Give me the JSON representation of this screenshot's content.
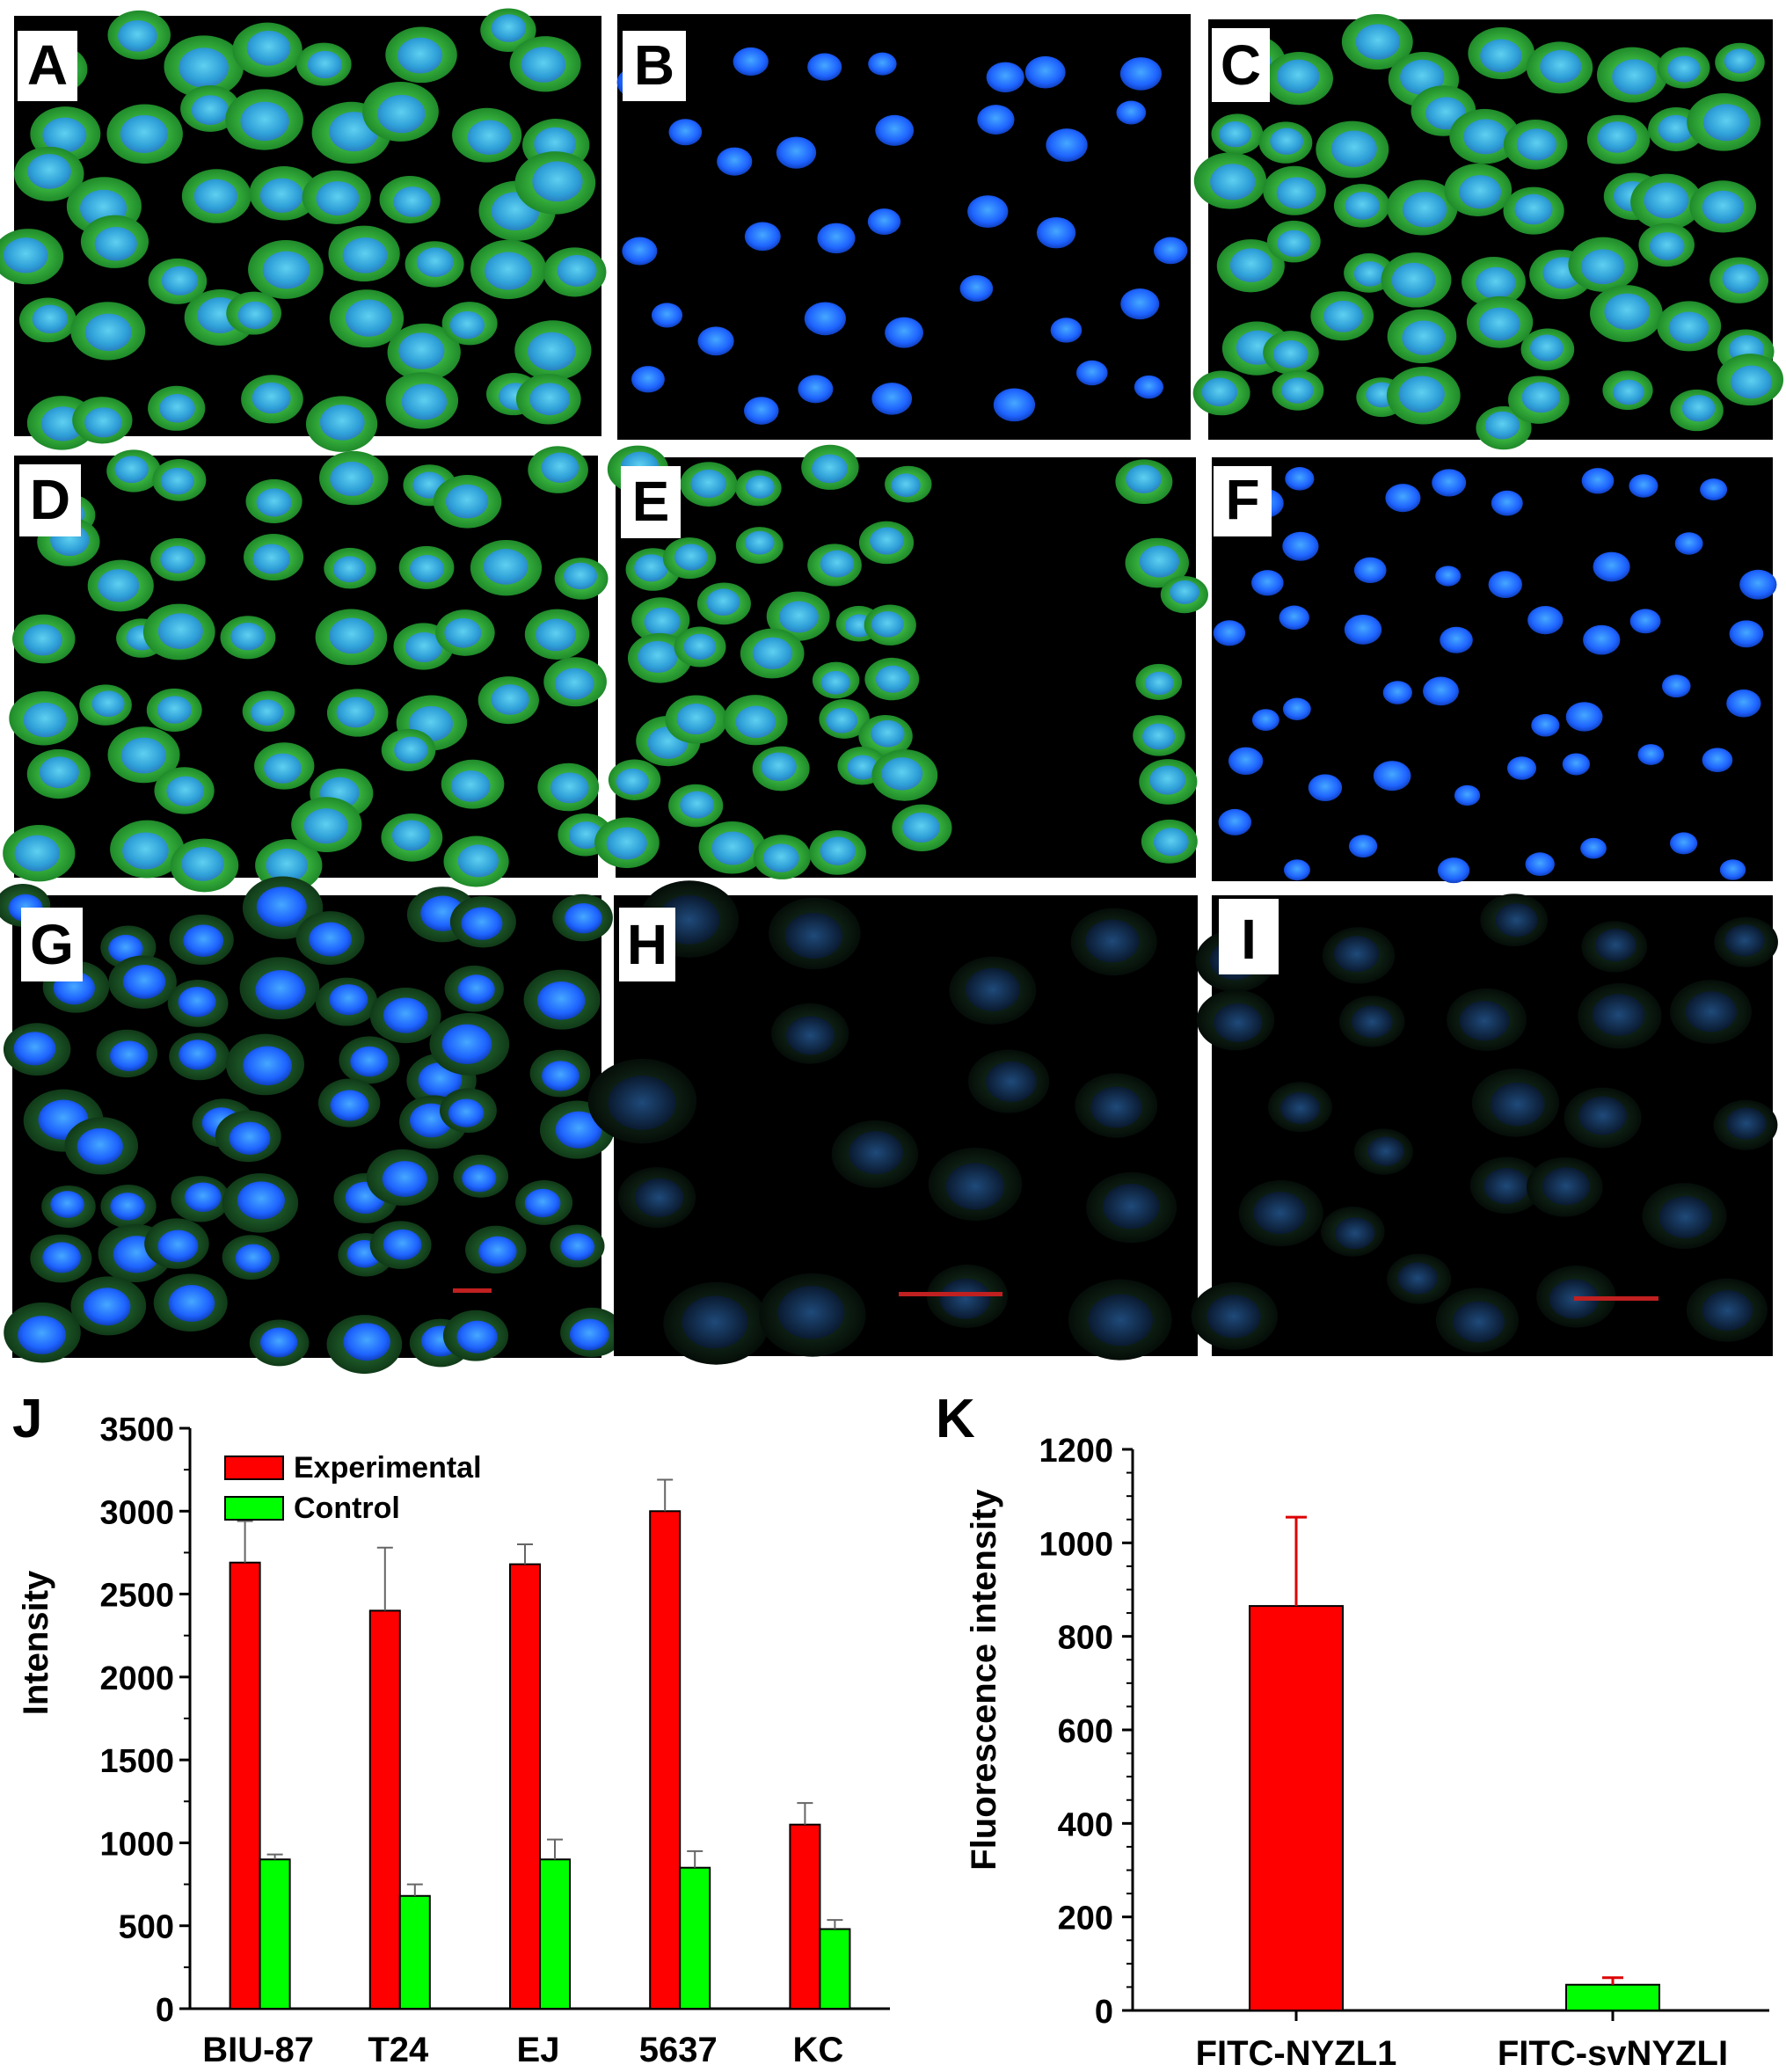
{
  "panels": {
    "A": {
      "label": "A"
    },
    "B": {
      "label": "B"
    },
    "C": {
      "label": "C"
    },
    "D": {
      "label": "D"
    },
    "E": {
      "label": "E"
    },
    "F": {
      "label": "F"
    },
    "G": {
      "label": "G"
    },
    "H": {
      "label": "H"
    },
    "I": {
      "label": "I"
    }
  },
  "colors": {
    "experimental": "#ff0000",
    "control": "#00ff00",
    "nucleus": "#1e64ff",
    "cytoplasm": "#3cc83c",
    "background": "#000000"
  },
  "chart_data": [
    {
      "panel_label": "J",
      "type": "bar",
      "categories": [
        "BIU-87",
        "T24",
        "EJ",
        "5637",
        "KC"
      ],
      "series": [
        {
          "name": "Experimental",
          "values": [
            2690,
            2400,
            2680,
            3000,
            1110
          ],
          "errors": [
            250,
            380,
            120,
            190,
            130
          ],
          "color": "#ff0000"
        },
        {
          "name": "Control",
          "values": [
            900,
            680,
            900,
            850,
            480
          ],
          "errors": [
            30,
            70,
            120,
            100,
            55
          ],
          "color": "#00ff00"
        }
      ],
      "title": "",
      "xlabel": "",
      "ylabel": "Intensity",
      "ylim": [
        0,
        3500
      ],
      "yticks": [
        "0",
        "500",
        "1000",
        "1500",
        "2000",
        "2500",
        "3000",
        "3500"
      ],
      "legend_position": "top-left",
      "grid": false
    },
    {
      "panel_label": "K",
      "type": "bar",
      "categories": [
        "FITC-NYZL1",
        "FITC-svNYZLI"
      ],
      "values": [
        865,
        55
      ],
      "errors": [
        190,
        15
      ],
      "colors": [
        "#ff0000",
        "#00ff00"
      ],
      "title": "",
      "xlabel": "",
      "ylabel": "Fluorescence intensity",
      "ylim": [
        0,
        1200
      ],
      "yticks": [
        "0",
        "200",
        "400",
        "600",
        "800",
        "1000",
        "1200"
      ],
      "grid": false
    }
  ]
}
